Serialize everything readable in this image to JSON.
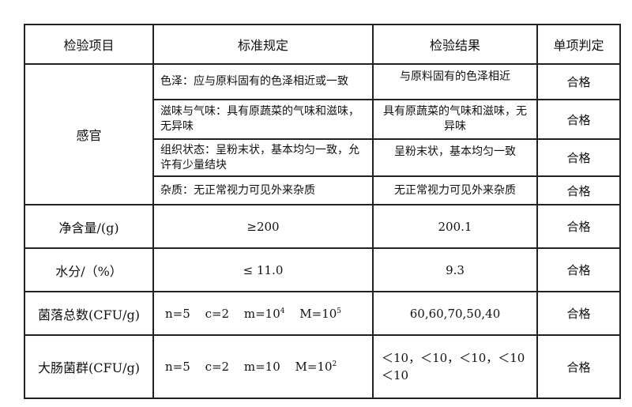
{
  "headers": [
    "检验项目",
    "标准规定",
    "检验结果",
    "单项判定"
  ],
  "sensory": {
    "item": "感官",
    "rows": [
      {
        "standard": "色泽：应与原料固有的色泽相近或一致",
        "result": "与原料固有的色泽相近",
        "judgement": "合格"
      },
      {
        "standard": "滋味与气味：具有原蔬菜的气味和滋味，无异味",
        "result": "具有原蔬菜的气味和滋味，无异味",
        "judgement": "合格"
      },
      {
        "standard": "组织状态：呈粉末状，基本均匀一致，允许有少量结块",
        "result": "呈粉末状，基本均匀一致",
        "judgement": "合格"
      },
      {
        "standard": "杂质：无正常视力可见外来杂质",
        "result": "无正常视力可见外来杂质",
        "judgement": "合格"
      }
    ]
  },
  "net": {
    "item": "净含量/(g)",
    "standard": "≥200",
    "result": "200.1",
    "judgement": "合格"
  },
  "moisture": {
    "item": "水分/（%）",
    "standard": "≤ 11.0",
    "result": "9.3",
    "judgement": "合格"
  },
  "colony": {
    "item": "菌落总数(CFU/g)",
    "n": "n=5",
    "c": "c=2",
    "m": "m=10",
    "m_exp": "4",
    "M": "M=10",
    "M_exp": "5",
    "result": "60,60,70,50,40",
    "judgement": "合格"
  },
  "coliform": {
    "item": "大肠菌群(CFU/g)",
    "n": "n=5",
    "c": "c=2",
    "m": "m=10",
    "M": "M=10",
    "M_exp": "2",
    "result": "＜10，＜10，＜10，＜10 ＜10",
    "judgement": "合格"
  }
}
